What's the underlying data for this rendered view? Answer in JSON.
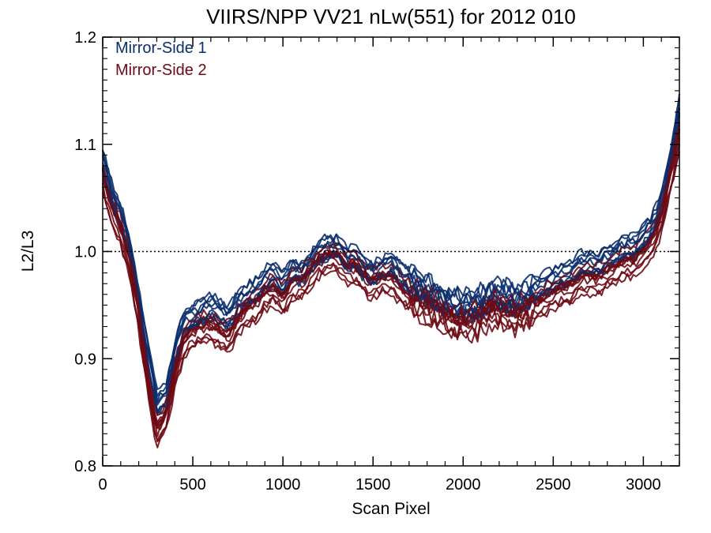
{
  "chart_data": {
    "type": "line",
    "title": "VIIRS/NPP VV21 nLw(551) for 2012 010",
    "xlabel": "Scan Pixel",
    "ylabel": "L2/L3",
    "xlim": [
      0,
      3200
    ],
    "ylim": [
      0.8,
      1.2
    ],
    "xticks": [
      0,
      500,
      1000,
      1500,
      2000,
      2500,
      3000
    ],
    "yticks": [
      0.8,
      0.9,
      1.0,
      1.1,
      1.2
    ],
    "xtick_labels": [
      "0",
      "500",
      "1000",
      "1500",
      "2000",
      "2500",
      "3000"
    ],
    "ytick_labels": [
      "0.8",
      "0.9",
      "1.0",
      "1.1",
      "1.2"
    ],
    "reference_line": {
      "y": 1.0,
      "style": "dotted"
    },
    "grid": false,
    "legend_position": "top-left",
    "colors": {
      "mirror_side_1": "#0a2f6e",
      "mirror_side_2": "#6e0a14"
    },
    "x": [
      0,
      50,
      100,
      150,
      200,
      250,
      300,
      350,
      400,
      450,
      500,
      550,
      600,
      650,
      700,
      750,
      800,
      850,
      900,
      950,
      1000,
      1050,
      1100,
      1150,
      1200,
      1250,
      1300,
      1350,
      1400,
      1450,
      1500,
      1550,
      1600,
      1650,
      1700,
      1750,
      1800,
      1850,
      1900,
      1950,
      2000,
      2050,
      2100,
      2150,
      2200,
      2250,
      2300,
      2350,
      2400,
      2450,
      2500,
      2550,
      2600,
      2650,
      2700,
      2750,
      2800,
      2850,
      2900,
      2950,
      3000,
      3050,
      3100,
      3150,
      3200
    ],
    "series": [
      {
        "name": "Mirror-Side 1",
        "values": [
          1.08,
          1.05,
          1.03,
          1.0,
          0.95,
          0.9,
          0.855,
          0.86,
          0.9,
          0.93,
          0.935,
          0.94,
          0.945,
          0.94,
          0.935,
          0.95,
          0.955,
          0.96,
          0.97,
          0.975,
          0.965,
          0.98,
          0.975,
          0.985,
          0.995,
          1.0,
          1.0,
          0.99,
          0.99,
          0.98,
          0.975,
          0.98,
          0.985,
          0.975,
          0.97,
          0.965,
          0.96,
          0.955,
          0.95,
          0.95,
          0.945,
          0.945,
          0.95,
          0.955,
          0.955,
          0.955,
          0.95,
          0.955,
          0.96,
          0.965,
          0.97,
          0.975,
          0.975,
          0.985,
          0.985,
          0.985,
          0.99,
          0.995,
          1.0,
          1.0,
          1.01,
          1.02,
          1.04,
          1.08,
          1.13
        ]
      },
      {
        "name": "Mirror-Side 2",
        "values": [
          1.07,
          1.04,
          1.02,
          0.99,
          0.94,
          0.88,
          0.83,
          0.845,
          0.885,
          0.915,
          0.925,
          0.93,
          0.93,
          0.925,
          0.92,
          0.935,
          0.945,
          0.95,
          0.96,
          0.965,
          0.955,
          0.97,
          0.97,
          0.98,
          0.99,
          0.995,
          0.995,
          0.985,
          0.985,
          0.975,
          0.97,
          0.975,
          0.975,
          0.965,
          0.96,
          0.955,
          0.95,
          0.945,
          0.94,
          0.935,
          0.935,
          0.935,
          0.94,
          0.945,
          0.945,
          0.945,
          0.94,
          0.945,
          0.95,
          0.955,
          0.96,
          0.965,
          0.965,
          0.975,
          0.975,
          0.975,
          0.98,
          0.985,
          0.99,
          0.99,
          1.0,
          1.01,
          1.03,
          1.07,
          1.11
        ]
      }
    ]
  }
}
